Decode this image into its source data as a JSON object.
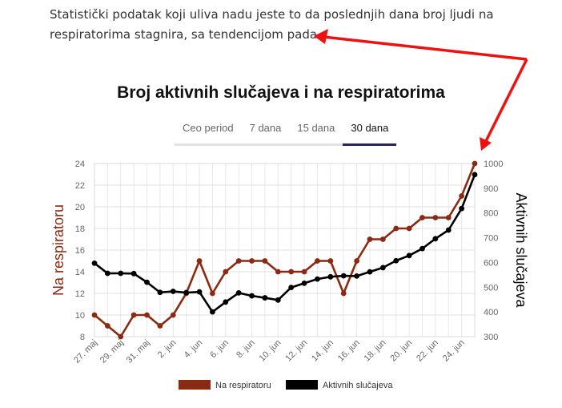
{
  "intro_text": "Statistički podatak koji uliva nadu jeste to da poslednjih dana broj ljudi na respiratorima stagnira, sa tendencijom pada.",
  "tabs": [
    {
      "label": "Ceo period",
      "active": false
    },
    {
      "label": "7 dana",
      "active": false
    },
    {
      "label": "15 dana",
      "active": false
    },
    {
      "label": "30 dana",
      "active": true
    }
  ],
  "colors": {
    "respirator": "#8b2a12",
    "active_cases": "#000000",
    "arrow": "#ee1111"
  },
  "chart_data": {
    "type": "line",
    "title": "Broj aktivnih slučajeva i na respiratorima",
    "ylabel_left": "Na respiratoru",
    "ylabel_right": "Aktivnih slučajeva",
    "ylim_left": [
      8,
      24
    ],
    "ylim_right": [
      300,
      1000
    ],
    "yticks_left": [
      "24",
      "22",
      "20",
      "18",
      "16",
      "14",
      "12",
      "10",
      "8"
    ],
    "yticks_right": [
      "1000",
      "900",
      "800",
      "700",
      "600",
      "500",
      "400",
      "300"
    ],
    "x_tick_labels": [
      "27. maj",
      "29. maj",
      "31. maj",
      "2. jun",
      "4. jun",
      "6. jun",
      "8. jun",
      "10. jun",
      "12. jun",
      "14. jun",
      "16. jun",
      "18. jun",
      "20. jun",
      "22. jun",
      "24. jun"
    ],
    "grid": true,
    "legend_position": "bottom",
    "series": [
      {
        "name": "Na respiratoru",
        "axis": "left",
        "values": [
          10,
          9,
          8,
          10,
          10,
          9,
          10,
          12,
          15,
          12,
          14,
          15,
          15,
          15,
          14,
          14,
          14,
          15,
          15,
          12,
          15,
          17,
          17,
          18,
          18,
          19,
          19,
          19,
          21,
          24
        ]
      },
      {
        "name": "Aktivnih slučajeva",
        "axis": "right",
        "values": [
          597,
          556,
          556,
          555,
          520,
          479,
          483,
          478,
          481,
          400,
          440,
          477,
          465,
          457,
          448,
          499,
          516,
          533,
          542,
          546,
          545,
          562,
          579,
          607,
          628,
          656,
          696,
          731,
          818,
          955
        ]
      }
    ]
  }
}
